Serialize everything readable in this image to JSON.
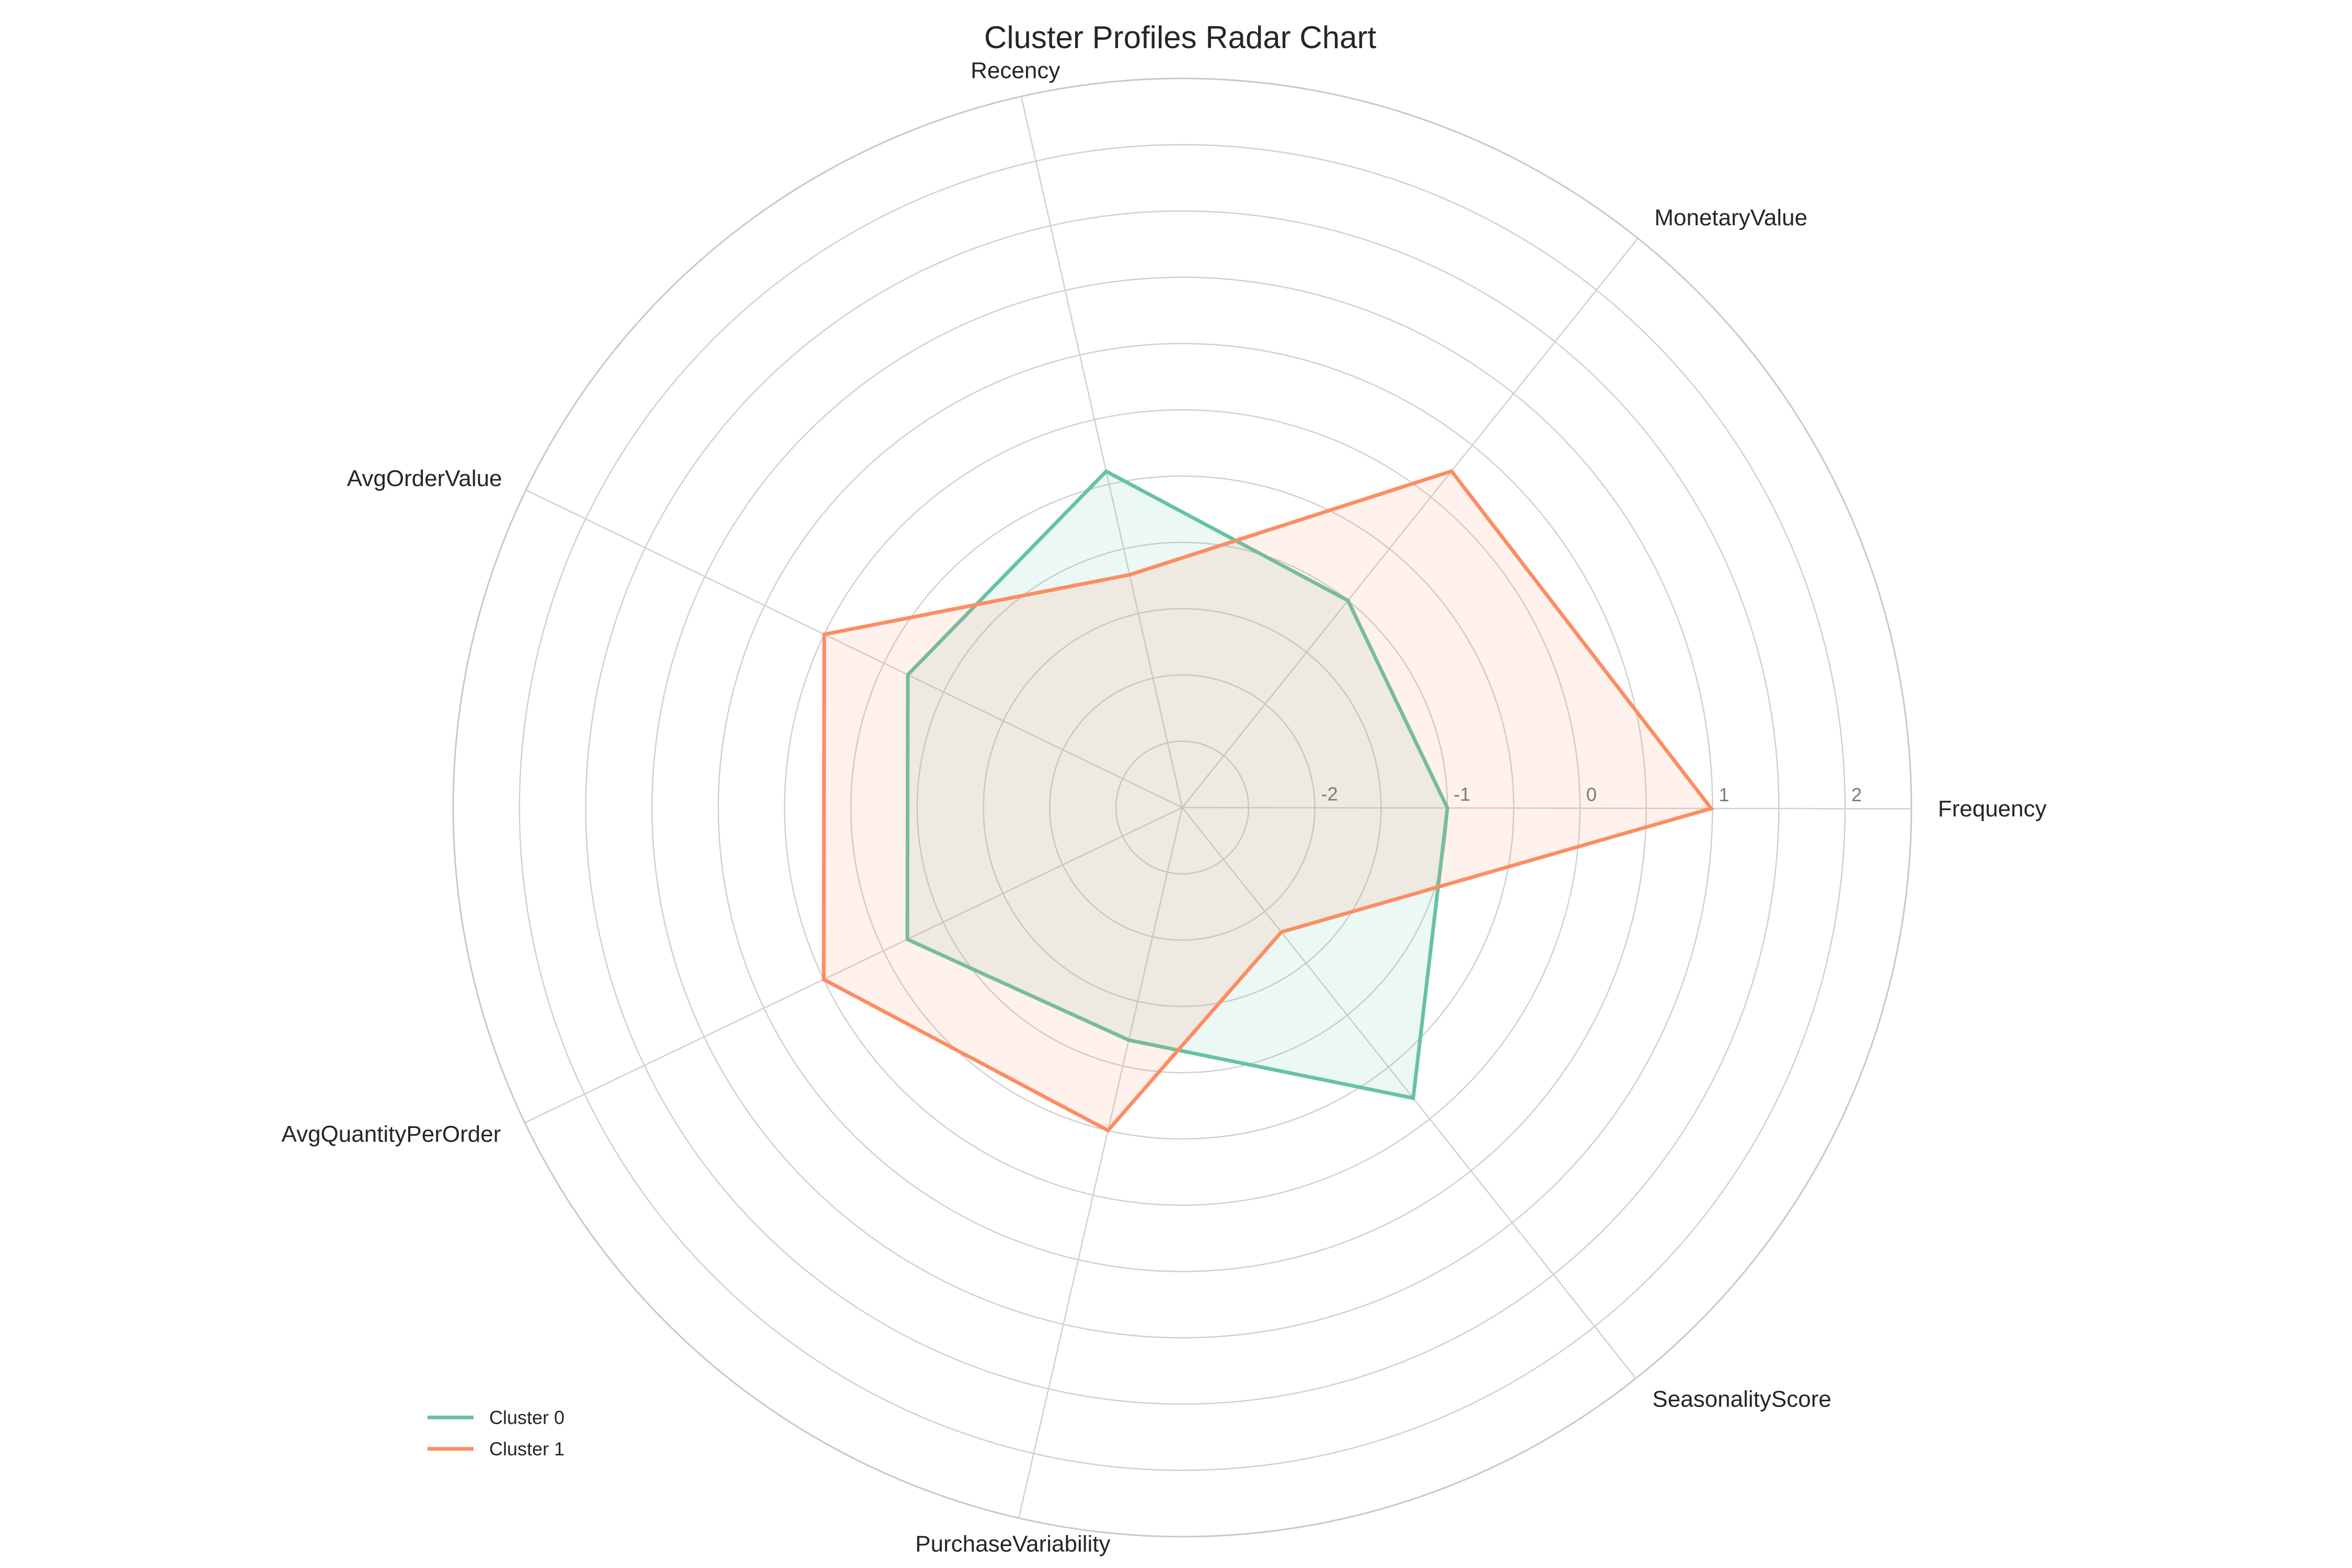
{
  "chart_data": {
    "type": "radar",
    "title": "Cluster Profiles Radar Chart",
    "axes": [
      "Frequency",
      "MonetaryValue",
      "Recency",
      "AvgOrderValue",
      "AvgQuantityPerOrder",
      "PurchaseVariability",
      "SeasonalityScore"
    ],
    "rlim": [
      -3,
      2.5
    ],
    "rticks": [
      -2,
      -1,
      0,
      1,
      2
    ],
    "rtick_labels": [
      "-2",
      "-1",
      "0",
      "1",
      "2"
    ],
    "grid": true,
    "legend_position": "lower-left",
    "series": [
      {
        "name": "Cluster 0",
        "color": "#66c2a5",
        "values": [
          -1.0,
          -1.0,
          -0.4,
          -0.7,
          -0.7,
          -1.2,
          -0.2
        ]
      },
      {
        "name": "Cluster 1",
        "color": "#fc8d62",
        "values": [
          0.99,
          0.25,
          -1.2,
          0.0,
          0.0,
          -0.5,
          -1.8
        ]
      }
    ]
  }
}
